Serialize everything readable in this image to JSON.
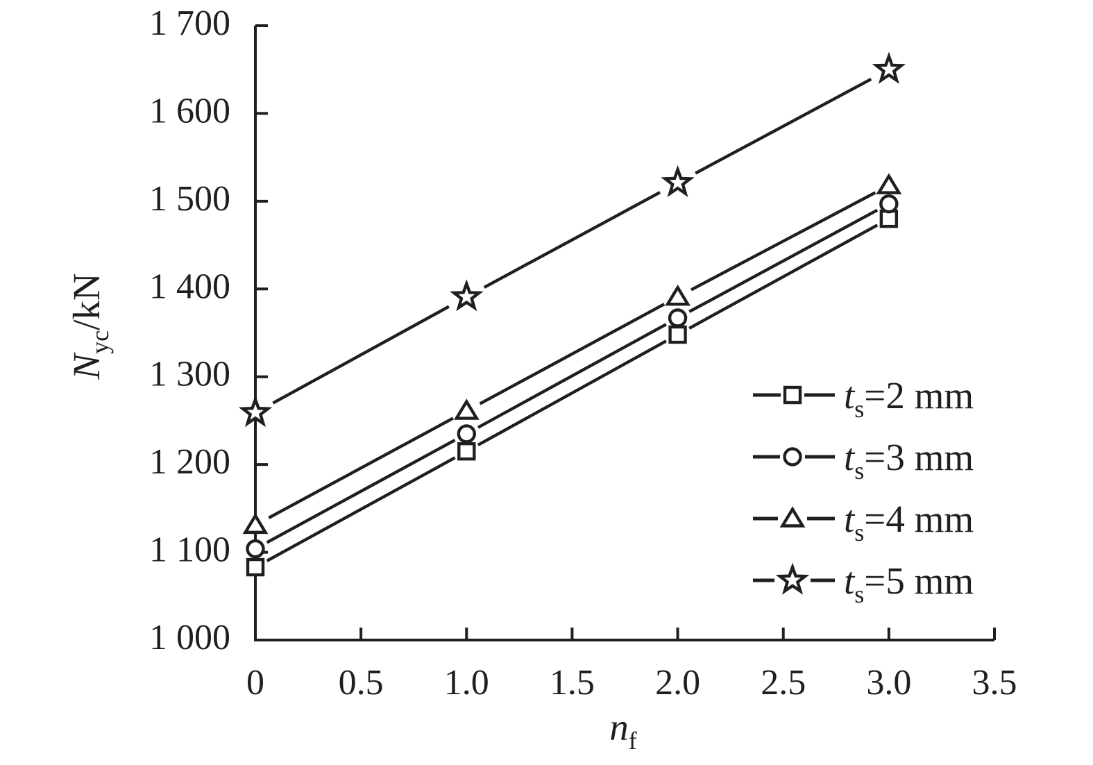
{
  "chart_data": {
    "type": "line",
    "title": "",
    "xlabel": {
      "base": "n",
      "subscript": "f",
      "suffix": ""
    },
    "ylabel": {
      "base": "N",
      "subscript": "yc",
      "suffix": "/kN"
    },
    "xlim": [
      0,
      3.5
    ],
    "ylim": [
      1000,
      1700
    ],
    "grid": false,
    "legend_position": "lower right",
    "stroke_color": "#1f1f1f",
    "background_color": "#ffffff",
    "x_ticks": [
      {
        "v": 0,
        "label": "0"
      },
      {
        "v": 0.5,
        "label": "0.5"
      },
      {
        "v": 1.0,
        "label": "1.0"
      },
      {
        "v": 1.5,
        "label": "1.5"
      },
      {
        "v": 2.0,
        "label": "2.0"
      },
      {
        "v": 2.5,
        "label": "2.5"
      },
      {
        "v": 3.0,
        "label": "3.0"
      },
      {
        "v": 3.5,
        "label": "3.5"
      }
    ],
    "y_ticks": [
      {
        "v": 1000,
        "label": "1 000"
      },
      {
        "v": 1100,
        "label": "1 100"
      },
      {
        "v": 1200,
        "label": "1 200"
      },
      {
        "v": 1300,
        "label": "1 300"
      },
      {
        "v": 1400,
        "label": "1 400"
      },
      {
        "v": 1500,
        "label": "1 500"
      },
      {
        "v": 1600,
        "label": "1 600"
      },
      {
        "v": 1700,
        "label": "1 700"
      }
    ],
    "x": [
      0,
      1,
      2,
      3
    ],
    "series": [
      {
        "id": "ts-2mm",
        "marker": "square",
        "legend": {
          "base": "t",
          "subscript": "s",
          "suffix": "=2 mm"
        },
        "values": [
          1083,
          1215,
          1348,
          1480
        ]
      },
      {
        "id": "ts-3mm",
        "marker": "circle",
        "legend": {
          "base": "t",
          "subscript": "s",
          "suffix": "=3 mm"
        },
        "values": [
          1104,
          1235,
          1367,
          1497
        ]
      },
      {
        "id": "ts-4mm",
        "marker": "triangle",
        "legend": {
          "base": "t",
          "subscript": "s",
          "suffix": "=4 mm"
        },
        "values": [
          1131,
          1261,
          1391,
          1518
        ]
      },
      {
        "id": "ts-5mm",
        "marker": "star",
        "legend": {
          "base": "t",
          "subscript": "s",
          "suffix": "=5 mm"
        },
        "values": [
          1259,
          1391,
          1521,
          1650
        ]
      }
    ]
  }
}
